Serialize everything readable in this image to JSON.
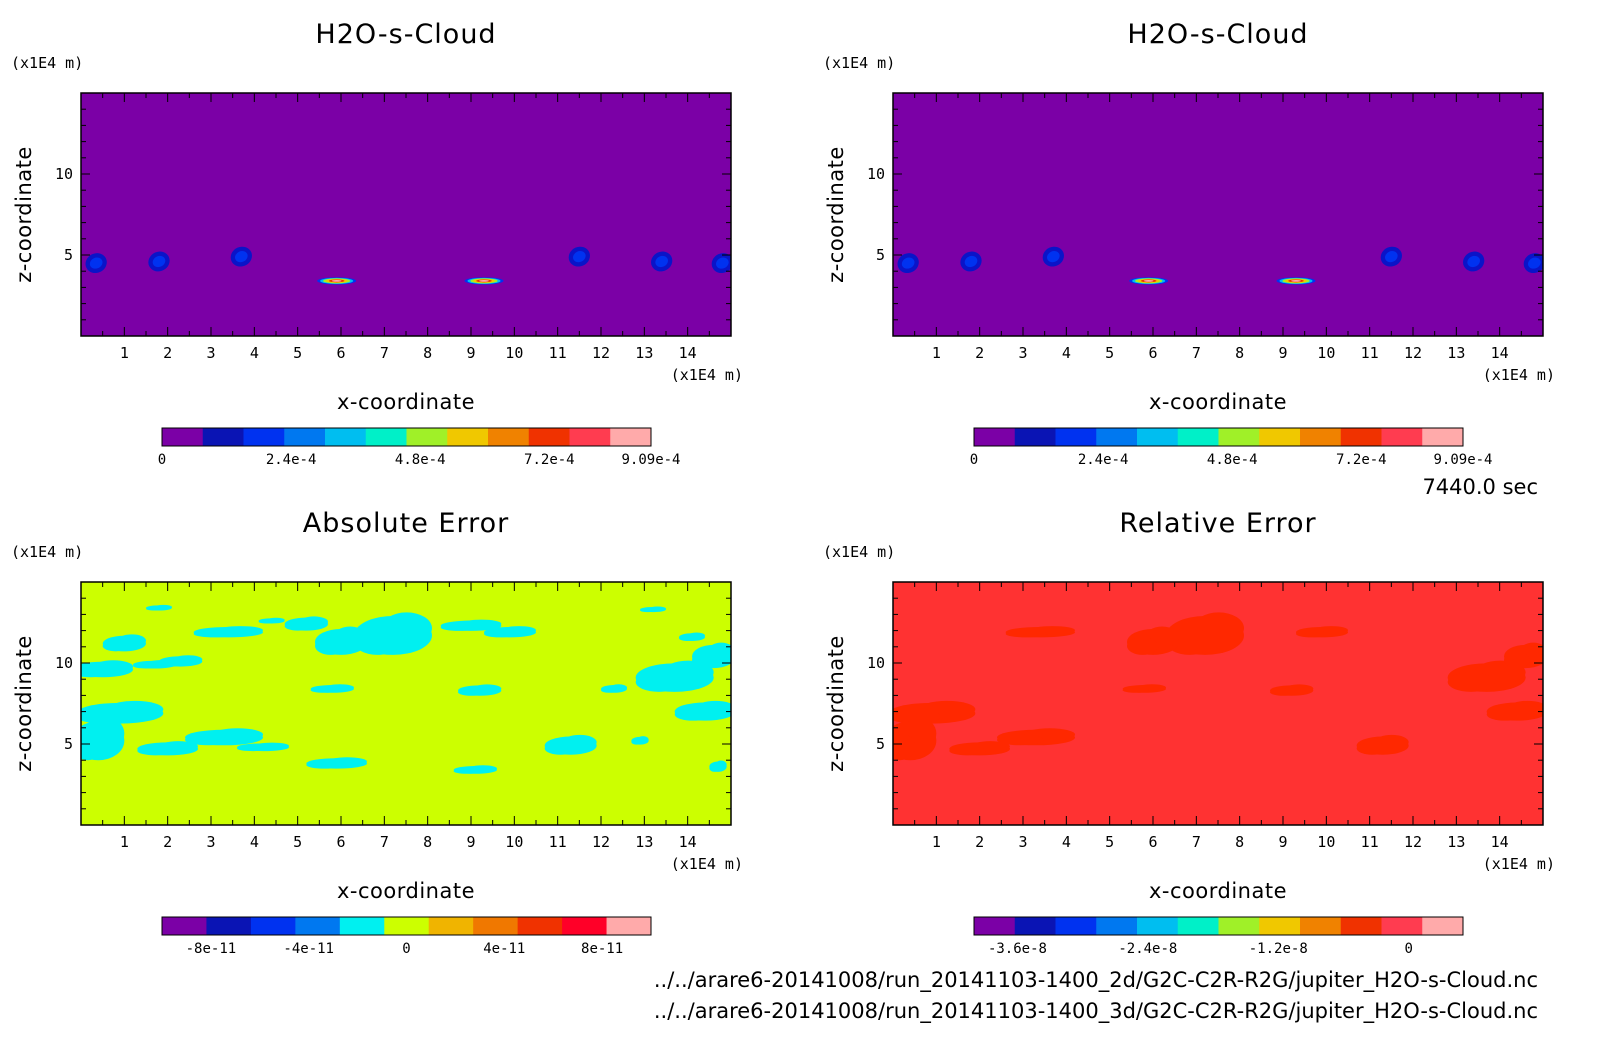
{
  "chart_data": [
    {
      "type": "heatmap",
      "title": "H2O-s-Cloud",
      "xlabel": "x-coordinate",
      "ylabel": "z-coordinate",
      "x_unit": "(x1E4 m)",
      "y_unit": "(x1E4 m)",
      "xlim": [
        0,
        15
      ],
      "ylim": [
        0,
        15
      ],
      "x_ticks": [
        1,
        2,
        3,
        4,
        5,
        6,
        7,
        8,
        9,
        10,
        11,
        12,
        13,
        14
      ],
      "y_ticks": [
        5,
        10
      ],
      "background_color": "#7b00a6",
      "colorbar": {
        "colors": [
          "#7b00a6",
          "#0a14b4",
          "#0032f0",
          "#0078f0",
          "#00bef0",
          "#00f0c8",
          "#a0f028",
          "#f0c800",
          "#f08200",
          "#f03200",
          "#ff3c50",
          "#ffaaaa"
        ],
        "tick_labels": [
          "0",
          "2.4e-4",
          "4.8e-4",
          "7.2e-4",
          "9.09e-4"
        ],
        "tick_positions": [
          0,
          0.00024,
          0.00048,
          0.00072,
          0.000909
        ],
        "range": [
          0,
          0.000909
        ]
      },
      "features": [
        {
          "x": 0.35,
          "z": 4.5,
          "value": 0.0001
        },
        {
          "x": 1.8,
          "z": 4.6,
          "value": 0.0001
        },
        {
          "x": 3.7,
          "z": 4.9,
          "value": 0.0001
        },
        {
          "x": 5.9,
          "z": 3.4,
          "value": 0.000909
        },
        {
          "x": 9.3,
          "z": 3.4,
          "value": 0.000909
        },
        {
          "x": 11.5,
          "z": 4.9,
          "value": 0.0001
        },
        {
          "x": 13.4,
          "z": 4.6,
          "value": 0.0001
        },
        {
          "x": 14.8,
          "z": 4.5,
          "value": 0.0001
        }
      ]
    },
    {
      "type": "heatmap",
      "title": "H2O-s-Cloud",
      "xlabel": "x-coordinate",
      "ylabel": "z-coordinate",
      "x_unit": "(x1E4 m)",
      "y_unit": "(x1E4 m)",
      "xlim": [
        0,
        15
      ],
      "ylim": [
        0,
        15
      ],
      "x_ticks": [
        1,
        2,
        3,
        4,
        5,
        6,
        7,
        8,
        9,
        10,
        11,
        12,
        13,
        14
      ],
      "y_ticks": [
        5,
        10
      ],
      "background_color": "#7b00a6",
      "colorbar": {
        "colors": [
          "#7b00a6",
          "#0a14b4",
          "#0032f0",
          "#0078f0",
          "#00bef0",
          "#00f0c8",
          "#a0f028",
          "#f0c800",
          "#f08200",
          "#f03200",
          "#ff3c50",
          "#ffaaaa"
        ],
        "tick_labels": [
          "0",
          "2.4e-4",
          "4.8e-4",
          "7.2e-4",
          "9.09e-4"
        ],
        "tick_positions": [
          0,
          0.00024,
          0.00048,
          0.00072,
          0.000909
        ],
        "range": [
          0,
          0.000909
        ]
      },
      "features": [
        {
          "x": 0.35,
          "z": 4.5,
          "value": 0.0001
        },
        {
          "x": 1.8,
          "z": 4.6,
          "value": 0.0001
        },
        {
          "x": 3.7,
          "z": 4.9,
          "value": 0.0001
        },
        {
          "x": 5.9,
          "z": 3.4,
          "value": 0.000909
        },
        {
          "x": 9.3,
          "z": 3.4,
          "value": 0.000909
        },
        {
          "x": 11.5,
          "z": 4.9,
          "value": 0.0001
        },
        {
          "x": 13.4,
          "z": 4.6,
          "value": 0.0001
        },
        {
          "x": 14.8,
          "z": 4.5,
          "value": 0.0001
        }
      ]
    },
    {
      "type": "heatmap",
      "title": "Absolute Error",
      "xlabel": "x-coordinate",
      "ylabel": "z-coordinate",
      "x_unit": "(x1E4 m)",
      "y_unit": "(x1E4 m)",
      "xlim": [
        0,
        15
      ],
      "ylim": [
        0,
        15
      ],
      "x_ticks": [
        1,
        2,
        3,
        4,
        5,
        6,
        7,
        8,
        9,
        10,
        11,
        12,
        13,
        14
      ],
      "y_ticks": [
        5,
        10
      ],
      "background_color": "#ccff00",
      "patch_color": "#00f0f0",
      "colorbar": {
        "colors": [
          "#7b00a6",
          "#0a14b4",
          "#0032f0",
          "#0078f0",
          "#00f0f0",
          "#ccff00",
          "#f0b400",
          "#f07800",
          "#f03200",
          "#ff0028",
          "#ffaaaa"
        ],
        "tick_labels": [
          "-8e-11",
          "-4e-11",
          "0",
          "4e-11",
          "8e-11"
        ],
        "tick_positions": [
          -8e-11,
          -4e-11,
          0,
          4e-11,
          8e-11
        ],
        "range": [
          -1e-10,
          1e-10
        ]
      },
      "patches": [
        {
          "x": 7.2,
          "z": 11.7,
          "rx": 0.9,
          "rz": 1.5
        },
        {
          "x": 6.0,
          "z": 11.3,
          "rx": 0.6,
          "rz": 1.0
        },
        {
          "x": 5.2,
          "z": 12.4,
          "rx": 0.5,
          "rz": 0.5
        },
        {
          "x": 3.4,
          "z": 11.9,
          "rx": 0.8,
          "rz": 0.4
        },
        {
          "x": 2.3,
          "z": 10.1,
          "rx": 0.5,
          "rz": 0.4
        },
        {
          "x": 1.0,
          "z": 11.2,
          "rx": 0.5,
          "rz": 0.6
        },
        {
          "x": 0.5,
          "z": 9.6,
          "rx": 0.7,
          "rz": 0.6
        },
        {
          "x": 1.7,
          "z": 9.9,
          "rx": 0.5,
          "rz": 0.3
        },
        {
          "x": 0.9,
          "z": 6.9,
          "rx": 1.0,
          "rz": 0.8
        },
        {
          "x": 0.4,
          "z": 5.2,
          "rx": 0.6,
          "rz": 1.5
        },
        {
          "x": 2.0,
          "z": 4.7,
          "rx": 0.7,
          "rz": 0.5
        },
        {
          "x": 3.3,
          "z": 5.4,
          "rx": 0.9,
          "rz": 0.6
        },
        {
          "x": 4.2,
          "z": 4.8,
          "rx": 0.6,
          "rz": 0.3
        },
        {
          "x": 5.9,
          "z": 3.8,
          "rx": 0.7,
          "rz": 0.4
        },
        {
          "x": 5.8,
          "z": 8.4,
          "rx": 0.5,
          "rz": 0.3
        },
        {
          "x": 9.2,
          "z": 8.3,
          "rx": 0.5,
          "rz": 0.4
        },
        {
          "x": 9.9,
          "z": 11.9,
          "rx": 0.6,
          "rz": 0.4
        },
        {
          "x": 9.0,
          "z": 12.3,
          "rx": 0.7,
          "rz": 0.4
        },
        {
          "x": 9.1,
          "z": 3.4,
          "rx": 0.5,
          "rz": 0.3
        },
        {
          "x": 11.3,
          "z": 4.9,
          "rx": 0.6,
          "rz": 0.7
        },
        {
          "x": 12.9,
          "z": 5.2,
          "rx": 0.2,
          "rz": 0.3
        },
        {
          "x": 13.7,
          "z": 9.1,
          "rx": 0.9,
          "rz": 1.1
        },
        {
          "x": 14.6,
          "z": 10.4,
          "rx": 0.5,
          "rz": 0.9
        },
        {
          "x": 14.4,
          "z": 7.0,
          "rx": 0.7,
          "rz": 0.7
        },
        {
          "x": 13.2,
          "z": 13.3,
          "rx": 0.3,
          "rz": 0.2
        },
        {
          "x": 14.1,
          "z": 11.6,
          "rx": 0.3,
          "rz": 0.3
        },
        {
          "x": 12.3,
          "z": 8.4,
          "rx": 0.3,
          "rz": 0.3
        },
        {
          "x": 14.7,
          "z": 3.6,
          "rx": 0.2,
          "rz": 0.4
        },
        {
          "x": 1.8,
          "z": 13.4,
          "rx": 0.3,
          "rz": 0.2
        },
        {
          "x": 4.4,
          "z": 12.6,
          "rx": 0.3,
          "rz": 0.2
        }
      ]
    },
    {
      "type": "heatmap",
      "title": "Relative Error",
      "xlabel": "x-coordinate",
      "ylabel": "z-coordinate",
      "x_unit": "(x1E4 m)",
      "y_unit": "(x1E4 m)",
      "xlim": [
        0,
        15
      ],
      "ylim": [
        0,
        15
      ],
      "x_ticks": [
        1,
        2,
        3,
        4,
        5,
        6,
        7,
        8,
        9,
        10,
        11,
        12,
        13,
        14
      ],
      "y_ticks": [
        5,
        10
      ],
      "background_color": "#ff3232",
      "patch_color": "#ff2800",
      "colorbar": {
        "colors": [
          "#7b00a6",
          "#0a14b4",
          "#0032f0",
          "#0078f0",
          "#00bef0",
          "#00f0c8",
          "#a0f028",
          "#f0c800",
          "#f08200",
          "#f03200",
          "#ff3c50",
          "#ffaaaa"
        ],
        "tick_labels": [
          "-3.6e-8",
          "-2.4e-8",
          "-1.2e-8",
          "0"
        ],
        "tick_positions": [
          -3.6e-08,
          -2.4e-08,
          -1.2e-08,
          0
        ],
        "range": [
          -4e-08,
          5e-09
        ]
      },
      "patches": [
        {
          "x": 7.2,
          "z": 11.7,
          "rx": 0.9,
          "rz": 1.5
        },
        {
          "x": 6.0,
          "z": 11.3,
          "rx": 0.6,
          "rz": 1.0
        },
        {
          "x": 3.4,
          "z": 11.9,
          "rx": 0.8,
          "rz": 0.4
        },
        {
          "x": 0.9,
          "z": 6.9,
          "rx": 1.0,
          "rz": 0.8
        },
        {
          "x": 0.4,
          "z": 5.2,
          "rx": 0.6,
          "rz": 1.5
        },
        {
          "x": 3.3,
          "z": 5.4,
          "rx": 0.9,
          "rz": 0.6
        },
        {
          "x": 2.0,
          "z": 4.7,
          "rx": 0.7,
          "rz": 0.5
        },
        {
          "x": 9.9,
          "z": 11.9,
          "rx": 0.6,
          "rz": 0.4
        },
        {
          "x": 11.3,
          "z": 4.9,
          "rx": 0.6,
          "rz": 0.7
        },
        {
          "x": 13.7,
          "z": 9.1,
          "rx": 0.9,
          "rz": 1.1
        },
        {
          "x": 14.6,
          "z": 10.4,
          "rx": 0.5,
          "rz": 0.9
        },
        {
          "x": 14.4,
          "z": 7.0,
          "rx": 0.7,
          "rz": 0.7
        },
        {
          "x": 9.2,
          "z": 8.3,
          "rx": 0.5,
          "rz": 0.4
        },
        {
          "x": 5.8,
          "z": 8.4,
          "rx": 0.5,
          "rz": 0.3
        }
      ]
    }
  ],
  "time_label": "7440.0 sec",
  "file_paths": [
    "../../arare6-20141008/run_20141103-1400_2d/G2C-C2R-R2G/jupiter_H2O-s-Cloud.nc",
    "../../arare6-20141008/run_20141103-1400_3d/G2C-C2R-R2G/jupiter_H2O-s-Cloud.nc"
  ]
}
